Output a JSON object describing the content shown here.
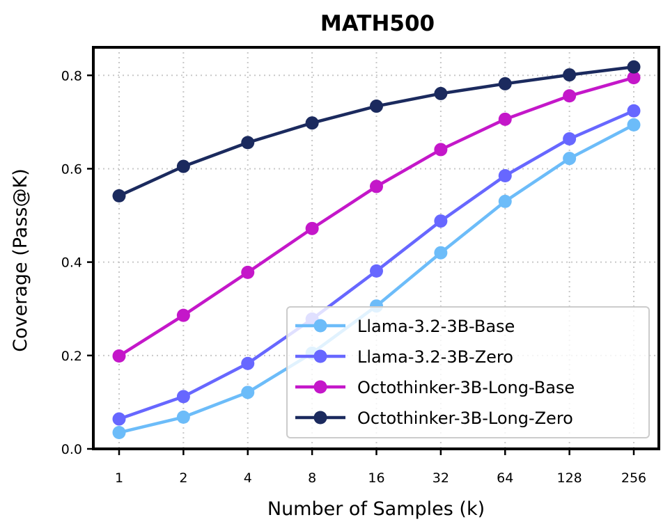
{
  "chart_data": {
    "type": "line",
    "title": "MATH500",
    "xlabel": "Number of Samples (k)",
    "ylabel": "Coverage (Pass@K)",
    "x_scale": "log2",
    "categories": [
      "1",
      "2",
      "4",
      "8",
      "16",
      "32",
      "64",
      "128",
      "256"
    ],
    "ylim": [
      0.0,
      0.86
    ],
    "yticks": [
      "0.0",
      "0.2",
      "0.4",
      "0.6",
      "0.8"
    ],
    "grid": true,
    "legend_position": "lower-right",
    "series": [
      {
        "name": "Llama-3.2-3B-Base",
        "color": "#6cbcf9",
        "values": [
          0.035,
          0.068,
          0.121,
          0.205,
          0.306,
          0.42,
          0.53,
          0.622,
          0.694
        ]
      },
      {
        "name": "Llama-3.2-3B-Zero",
        "color": "#6767ff",
        "values": [
          0.064,
          0.112,
          0.183,
          0.278,
          0.381,
          0.488,
          0.585,
          0.664,
          0.724
        ]
      },
      {
        "name": "Octothinker-3B-Long-Base",
        "color": "#c417c9",
        "values": [
          0.199,
          0.286,
          0.378,
          0.472,
          0.562,
          0.641,
          0.706,
          0.756,
          0.795
        ]
      },
      {
        "name": "Octothinker-3B-Long-Zero",
        "color": "#1b2a5e",
        "values": [
          0.542,
          0.605,
          0.656,
          0.698,
          0.734,
          0.761,
          0.782,
          0.801,
          0.818
        ]
      }
    ]
  }
}
